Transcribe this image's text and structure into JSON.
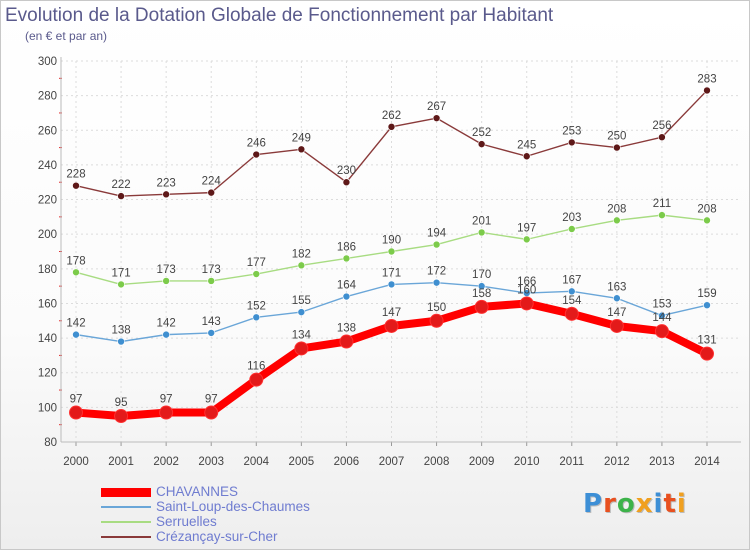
{
  "title": "Evolution de la Dotation Globale de Fonctionnement par Habitant",
  "subtitle": "(en € et par an)",
  "logo": {
    "text": "Proxiti",
    "letter_colors": [
      "#3d8fd6",
      "#e8501f",
      "#3db34a",
      "#f0a020",
      "#3d8fd6",
      "#e8501f",
      "#f0a020"
    ]
  },
  "chart_data": {
    "type": "line",
    "title": "Evolution de la Dotation Globale de Fonctionnement par Habitant",
    "subtitle": "(en € et par an)",
    "xlabel": "",
    "ylabel": "",
    "x": [
      2000,
      2001,
      2002,
      2003,
      2004,
      2005,
      2006,
      2007,
      2008,
      2009,
      2010,
      2011,
      2012,
      2013,
      2014
    ],
    "ylim": [
      80,
      300
    ],
    "yticks": [
      80,
      100,
      120,
      140,
      160,
      180,
      200,
      220,
      240,
      260,
      280,
      300
    ],
    "grid": true,
    "legend_position": "bottom-left",
    "series": [
      {
        "name": "CHAVANNES",
        "color": "#ff0000",
        "marker_color": "#e31a1a",
        "emphasis": true,
        "values": [
          97,
          95,
          97,
          97,
          116,
          134,
          138,
          147,
          150,
          158,
          160,
          154,
          147,
          144,
          131
        ]
      },
      {
        "name": "Saint-Loup-des-Chaumes",
        "color": "#6aa6d8",
        "marker_color": "#3f8fd0",
        "emphasis": false,
        "values": [
          142,
          138,
          142,
          143,
          152,
          155,
          164,
          171,
          172,
          170,
          166,
          167,
          163,
          153,
          159
        ]
      },
      {
        "name": "Serruelles",
        "color": "#a8dc82",
        "marker_color": "#7ccb4a",
        "emphasis": false,
        "values": [
          178,
          171,
          173,
          173,
          177,
          182,
          186,
          190,
          194,
          201,
          197,
          203,
          208,
          211,
          208
        ]
      },
      {
        "name": "Crézançay-sur-Cher",
        "color": "#8a3a3a",
        "marker_color": "#5e1818",
        "emphasis": false,
        "values": [
          228,
          222,
          223,
          224,
          246,
          249,
          230,
          262,
          267,
          252,
          245,
          253,
          250,
          256,
          283
        ]
      }
    ]
  }
}
